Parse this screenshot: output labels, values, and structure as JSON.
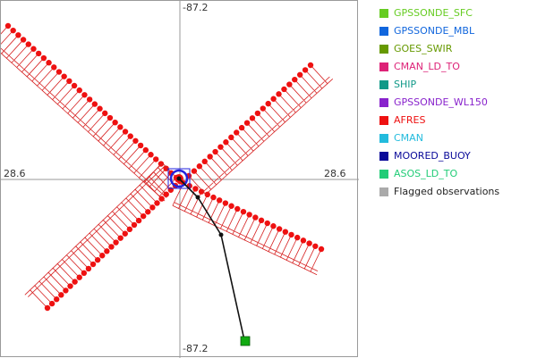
{
  "plot": {
    "top_label": "-87.2",
    "bottom_label": "-87.2",
    "left_label": "28.6",
    "right_label": "28.6",
    "colors": {
      "axis": "#9a9a9a",
      "track_line": "#111111",
      "barb": "#d62020",
      "obs_dot": "#ee1111",
      "center_ring": "#2222dd",
      "endpoint_marker": "#11aa11"
    }
  },
  "legend": {
    "items": [
      {
        "label": "GPSSONDE_SFC",
        "color": "#66cc22"
      },
      {
        "label": "GPSSONDE_MBL",
        "color": "#1166dd"
      },
      {
        "label": "GOES_SWIR",
        "color": "#669900"
      },
      {
        "label": "CMAN_LD_TO",
        "color": "#dd2277"
      },
      {
        "label": "SHIP",
        "color": "#119988"
      },
      {
        "label": "GPSSONDE_WL150",
        "color": "#8822cc"
      },
      {
        "label": "AFRES",
        "color": "#ee1111"
      },
      {
        "label": "CMAN",
        "color": "#22bbdd"
      },
      {
        "label": "MOORED_BUOY",
        "color": "#0a0a99"
      },
      {
        "label": "ASOS_LD_TO",
        "color": "#22cc77"
      },
      {
        "label": "Flagged observations",
        "color": "#aaaaaa"
      }
    ]
  }
}
